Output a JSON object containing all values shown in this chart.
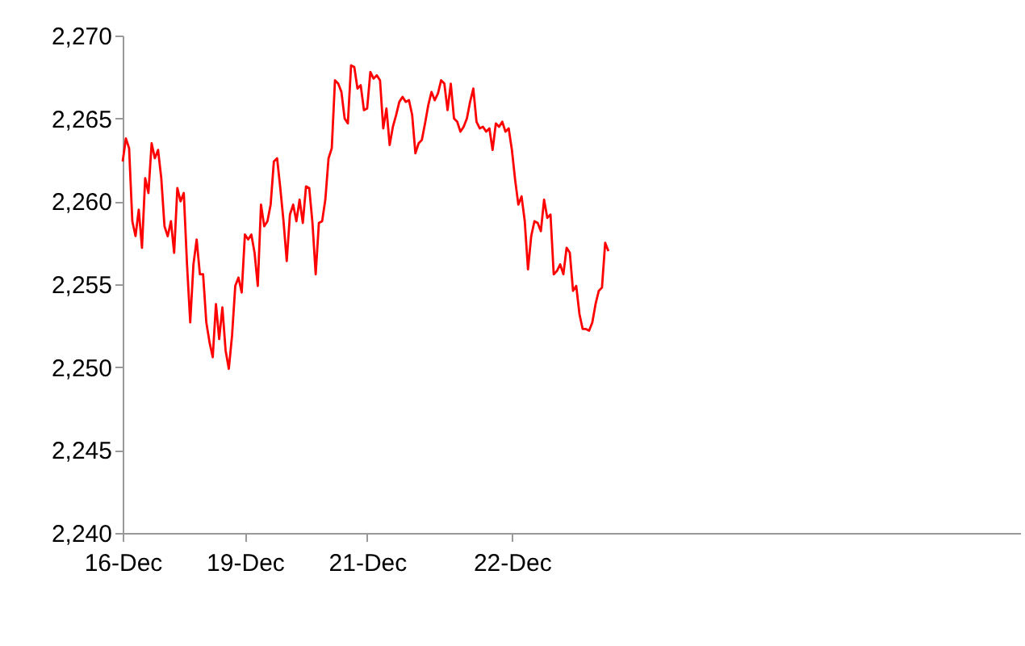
{
  "chart_data": {
    "type": "line",
    "categories": [
      "16-Dec",
      null,
      null,
      null,
      null,
      null,
      null,
      null,
      null,
      null,
      null,
      null,
      null,
      null,
      null,
      null,
      null,
      null,
      null,
      null,
      null,
      null,
      null,
      null,
      null,
      null,
      null,
      null,
      null,
      null,
      null,
      null,
      null,
      null,
      null,
      null,
      null,
      null,
      "19-Dec",
      null,
      null,
      null,
      null,
      null,
      null,
      null,
      null,
      null,
      null,
      null,
      null,
      null,
      null,
      null,
      null,
      null,
      null,
      null,
      null,
      null,
      null,
      null,
      null,
      null,
      null,
      null,
      null,
      null,
      null,
      null,
      null,
      null,
      null,
      null,
      null,
      null,
      "21-Dec",
      null,
      null,
      null,
      null,
      null,
      null,
      null,
      null,
      null,
      null,
      null,
      null,
      null,
      null,
      null,
      null,
      null,
      null,
      null,
      null,
      null,
      null,
      null,
      null,
      null,
      null,
      null,
      null,
      null,
      null,
      null,
      null,
      null,
      null,
      null,
      null,
      null,
      null,
      null,
      null,
      null,
      null,
      null,
      null,
      "22-Dec",
      null,
      null,
      null,
      null,
      null,
      null,
      null,
      null,
      null,
      null,
      null,
      null,
      null,
      null,
      null,
      null,
      null,
      null,
      null,
      null,
      null,
      null,
      null,
      null,
      null,
      null,
      null,
      null,
      null,
      null,
      null,
      null,
      null,
      null,
      null,
      null,
      null,
      null,
      null,
      null,
      null,
      null,
      null,
      null,
      null,
      null,
      null,
      null,
      null,
      null,
      null,
      null,
      null,
      null,
      null,
      null,
      null,
      null,
      null,
      null,
      null,
      null,
      null,
      null,
      null,
      null,
      null,
      null,
      null,
      null,
      null,
      null,
      null,
      null,
      null,
      null,
      null,
      null,
      null,
      null,
      null,
      null,
      null,
      null,
      null,
      null,
      null,
      null,
      null,
      null,
      null,
      null,
      null,
      null,
      null,
      null,
      null,
      null,
      null,
      null,
      null,
      null,
      null,
      null,
      null,
      null,
      null,
      null,
      null,
      null,
      null,
      null,
      null,
      null,
      null,
      null,
      null,
      null,
      null,
      null,
      null,
      null,
      null,
      null,
      null,
      null,
      null,
      null,
      null,
      null,
      null,
      null,
      null,
      null,
      null,
      null,
      null,
      null,
      null,
      null,
      null,
      null,
      null,
      null,
      null,
      null,
      null,
      null,
      null,
      null,
      null,
      null,
      null,
      null,
      null,
      null,
      null,
      null
    ],
    "series": [
      {
        "color": "#ff0000",
        "values": [
          2262.4,
          2263.8,
          2263.2,
          2258.8,
          2257.9,
          2259.5,
          2257.2,
          2261.4,
          2260.5,
          2263.5,
          2262.6,
          2263.1,
          2261.4,
          2258.5,
          2257.9,
          2258.8,
          2256.9,
          2260.8,
          2260.0,
          2260.5,
          2256.2,
          2252.7,
          2256.2,
          2257.7,
          2255.6,
          2255.6,
          2252.7,
          2251.5,
          2250.6,
          2253.8,
          2251.7,
          2253.6,
          2251.0,
          2249.9,
          2251.9,
          2254.9,
          2255.4,
          2254.5,
          2258.0,
          2257.7,
          2258.0,
          2256.9,
          2254.9,
          2259.8,
          2258.5,
          2258.8,
          2259.8,
          2262.4,
          2262.6,
          2260.8,
          2258.8,
          2256.4,
          2259.2,
          2259.8,
          2258.8,
          2260.1,
          2258.7,
          2260.9,
          2260.8,
          2258.7,
          2255.6,
          2258.7,
          2258.8,
          2260.1,
          2262.6,
          2263.2,
          2267.3,
          2267.1,
          2266.6,
          2265.0,
          2264.7,
          2268.2,
          2268.1,
          2266.8,
          2267.0,
          2265.5,
          2265.6,
          2267.8,
          2267.4,
          2267.6,
          2267.3,
          2264.4,
          2265.6,
          2263.4,
          2264.5,
          2265.2,
          2266.0,
          2266.3,
          2266.0,
          2266.1,
          2265.2,
          2262.9,
          2263.5,
          2263.7,
          2264.7,
          2265.8,
          2266.6,
          2266.1,
          2266.5,
          2267.3,
          2267.1,
          2265.5,
          2267.1,
          2265.0,
          2264.8,
          2264.2,
          2264.5,
          2265.0,
          2266.0,
          2266.8,
          2264.8,
          2264.4,
          2264.5,
          2264.2,
          2264.4,
          2263.1,
          2264.7,
          2264.5,
          2264.8,
          2264.2,
          2264.4,
          2263.1,
          2261.3,
          2259.8,
          2260.3,
          2258.8,
          2255.9,
          2257.9,
          2258.8,
          2258.7,
          2258.2,
          2260.1,
          2259.0,
          2259.2,
          2255.6,
          2255.8,
          2256.2,
          2255.6,
          2257.2,
          2256.9,
          2254.6,
          2254.9,
          2253.2,
          2252.3,
          2252.3,
          2252.2,
          2252.7,
          2253.8,
          2254.6,
          2254.8,
          2257.5,
          2257.0,
          null,
          null,
          null,
          null,
          null,
          null,
          null,
          null,
          null,
          null,
          null,
          null,
          null,
          null,
          null,
          null,
          null,
          null,
          null,
          null,
          null,
          null,
          null,
          null,
          null,
          null,
          null,
          null,
          null,
          null,
          null,
          null,
          null,
          null,
          null,
          null,
          null,
          null,
          null,
          null,
          null,
          null,
          null,
          null,
          null,
          null,
          null,
          null,
          null,
          null,
          null,
          null,
          null,
          null,
          null,
          null,
          null,
          null,
          null,
          null,
          null,
          null,
          null,
          null,
          null,
          null,
          null,
          null,
          null,
          null,
          null,
          null,
          null,
          null,
          null,
          null,
          null,
          null,
          null,
          null,
          null,
          null,
          null,
          null,
          null,
          null,
          null,
          null,
          null,
          null,
          null,
          null,
          null,
          null,
          null,
          null,
          null,
          null,
          null,
          null,
          null,
          null,
          null,
          null,
          null,
          null,
          null,
          null,
          null,
          null,
          null,
          null,
          null,
          null,
          null,
          null,
          null,
          null,
          null,
          null,
          null,
          null,
          null,
          null,
          null,
          null,
          null,
          null
        ]
      }
    ],
    "ylim": [
      2240,
      2270
    ],
    "yticks": [
      {
        "value": 2240,
        "label": "2,240"
      },
      {
        "value": 2245,
        "label": "2,245"
      },
      {
        "value": 2250,
        "label": "2,250"
      },
      {
        "value": 2255,
        "label": "2,255"
      },
      {
        "value": 2260,
        "label": "2,260"
      },
      {
        "value": 2265,
        "label": "2,265"
      },
      {
        "value": 2270,
        "label": "2,270"
      }
    ],
    "grid": false,
    "marker": "none",
    "line_style": "solid"
  }
}
